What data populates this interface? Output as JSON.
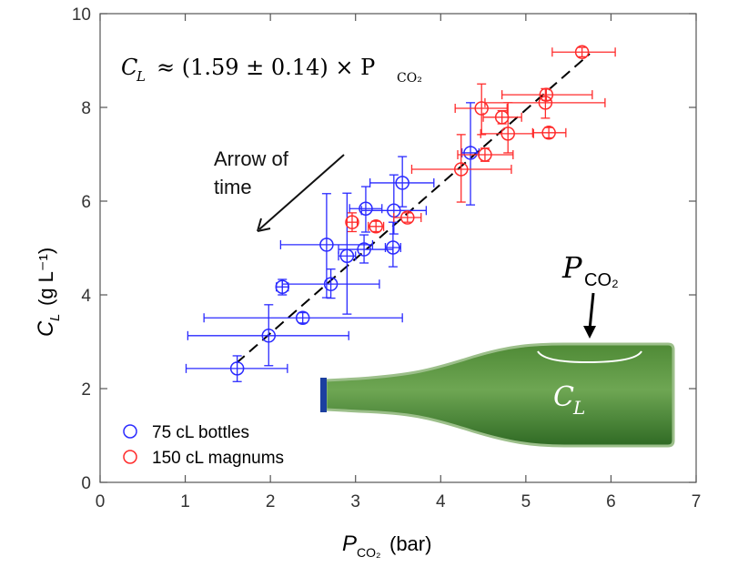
{
  "chart_data": {
    "type": "scatter",
    "xlabel": "P",
    "xlabel_sub": "CO₂",
    "xlabel_unit": "(bar)",
    "ylabel": "C",
    "ylabel_sub": "L",
    "ylabel_unit": "(g L⁻¹)",
    "xlim": [
      0,
      7
    ],
    "ylim": [
      0,
      10
    ],
    "xticks": [
      "0",
      "1",
      "2",
      "3",
      "4",
      "5",
      "6",
      "7"
    ],
    "yticks": [
      "0",
      "2",
      "4",
      "6",
      "8",
      "10"
    ],
    "grid": false,
    "legend_position": "bottom-left",
    "equation": {
      "lhs": "C",
      "lhs_sub": "L",
      "rhs": "≈ (1.59 ± 0.14) × P",
      "rhs_sub": "CO₂"
    },
    "fit": {
      "slope": 1.59,
      "x_range": [
        1.6,
        5.75
      ],
      "style": "dashed",
      "color": "#000000"
    },
    "annotation_arrow": {
      "line1": "Arrow of",
      "line2": "time"
    },
    "bottle": {
      "pressure_label": "P",
      "pressure_sub": "CO₂",
      "liquid_label": "C",
      "liquid_sub": "L"
    },
    "series": [
      {
        "name": "75 cL bottles",
        "color": "#2a2aff",
        "points": [
          {
            "x": 1.61,
            "y": 2.43,
            "xlo": 1.01,
            "xhi": 2.2,
            "ylo": 2.15,
            "yhi": 2.7
          },
          {
            "x": 1.98,
            "y": 3.13,
            "xlo": 1.03,
            "xhi": 2.92,
            "ylo": 2.49,
            "yhi": 3.79
          },
          {
            "x": 2.38,
            "y": 3.51,
            "xlo": 1.22,
            "xhi": 3.55,
            "ylo": 3.4,
            "yhi": 3.62
          },
          {
            "x": 2.14,
            "y": 4.17,
            "xlo": 2.07,
            "xhi": 2.21,
            "ylo": 4.0,
            "yhi": 4.33
          },
          {
            "x": 2.71,
            "y": 4.23,
            "xlo": 2.14,
            "xhi": 3.28,
            "ylo": 3.93,
            "yhi": 4.55
          },
          {
            "x": 2.9,
            "y": 4.83,
            "xlo": 2.8,
            "xhi": 3.0,
            "ylo": 3.59,
            "yhi": 6.17
          },
          {
            "x": 2.66,
            "y": 5.07,
            "xlo": 2.12,
            "xhi": 3.2,
            "ylo": 3.94,
            "yhi": 6.16
          },
          {
            "x": 3.1,
            "y": 4.97,
            "xlo": 2.8,
            "xhi": 3.44,
            "ylo": 4.68,
            "yhi": 5.28
          },
          {
            "x": 3.44,
            "y": 5.01,
            "xlo": 3.35,
            "xhi": 3.53,
            "ylo": 4.6,
            "yhi": 5.55
          },
          {
            "x": 3.12,
            "y": 5.84,
            "xlo": 2.93,
            "xhi": 3.31,
            "ylo": 5.34,
            "yhi": 6.31
          },
          {
            "x": 3.45,
            "y": 5.8,
            "xlo": 3.07,
            "xhi": 3.83,
            "ylo": 5.3,
            "yhi": 6.56
          },
          {
            "x": 3.55,
            "y": 6.39,
            "xlo": 3.17,
            "xhi": 3.92,
            "ylo": 5.88,
            "yhi": 6.95
          },
          {
            "x": 4.35,
            "y": 7.03,
            "xlo": 4.25,
            "xhi": 4.45,
            "ylo": 5.92,
            "yhi": 8.1
          }
        ]
      },
      {
        "name": "150 cL magnums",
        "color": "#ff2a2a",
        "points": [
          {
            "x": 2.96,
            "y": 5.55,
            "xlo": 2.9,
            "xhi": 3.02,
            "ylo": 5.35,
            "yhi": 5.75
          },
          {
            "x": 3.24,
            "y": 5.46,
            "xlo": 3.15,
            "xhi": 3.33,
            "ylo": 5.35,
            "yhi": 5.57
          },
          {
            "x": 3.61,
            "y": 5.65,
            "xlo": 3.45,
            "xhi": 3.77,
            "ylo": 5.55,
            "yhi": 5.75
          },
          {
            "x": 4.24,
            "y": 6.68,
            "xlo": 3.66,
            "xhi": 4.83,
            "ylo": 5.98,
            "yhi": 7.42
          },
          {
            "x": 4.52,
            "y": 6.99,
            "xlo": 4.2,
            "xhi": 4.85,
            "ylo": 6.85,
            "yhi": 7.13
          },
          {
            "x": 4.48,
            "y": 7.98,
            "xlo": 4.17,
            "xhi": 4.78,
            "ylo": 7.42,
            "yhi": 8.5
          },
          {
            "x": 4.72,
            "y": 7.79,
            "xlo": 4.5,
            "xhi": 4.95,
            "ylo": 7.65,
            "yhi": 7.93
          },
          {
            "x": 4.79,
            "y": 7.44,
            "xlo": 4.47,
            "xhi": 5.09,
            "ylo": 7.03,
            "yhi": 8.1
          },
          {
            "x": 5.27,
            "y": 7.46,
            "xlo": 5.08,
            "xhi": 5.47,
            "ylo": 7.35,
            "yhi": 7.57
          },
          {
            "x": 5.24,
            "y": 8.27,
            "xlo": 4.72,
            "xhi": 5.78,
            "ylo": 8.15,
            "yhi": 8.39
          },
          {
            "x": 5.23,
            "y": 8.1,
            "xlo": 4.52,
            "xhi": 5.93,
            "ylo": 7.77,
            "yhi": 8.4
          },
          {
            "x": 5.66,
            "y": 9.18,
            "xlo": 5.31,
            "xhi": 6.05,
            "ylo": 9.08,
            "yhi": 9.28
          }
        ]
      }
    ]
  }
}
